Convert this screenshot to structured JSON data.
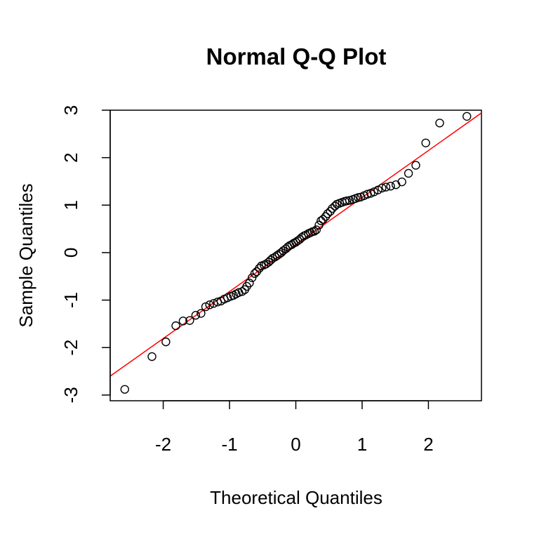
{
  "chart_data": {
    "type": "scatter",
    "title": "Normal Q-Q Plot",
    "xlabel": "Theoretical Quantiles",
    "ylabel": "Sample Quantiles",
    "xlim": [
      -2.8,
      2.8
    ],
    "ylim": [
      -3.12,
      3.0
    ],
    "xticks": [
      -2,
      -1,
      0,
      1,
      2
    ],
    "yticks": [
      -3,
      -2,
      -1,
      0,
      1,
      2,
      3
    ],
    "xtick_labels": [
      "-2",
      "-1",
      "0",
      "1",
      "2"
    ],
    "ytick_labels": [
      "-3",
      "-2",
      "-1",
      "0",
      "1",
      "2",
      "3"
    ],
    "grid": false,
    "reference_line": {
      "intercept": 0.17,
      "slope": 0.99,
      "color": "#ff0000"
    },
    "point_color": "#000000",
    "series": [
      {
        "x": [
          -2.58,
          -2.17,
          -1.96,
          -1.81,
          -1.7,
          -1.6,
          -1.51,
          -1.43,
          -1.36,
          -1.3,
          -1.24,
          -1.18,
          -1.13,
          -1.08,
          -1.03,
          -0.98,
          -0.94,
          -0.9,
          -0.86,
          -0.81,
          -0.77,
          -0.74,
          -0.7,
          -0.66,
          -0.62,
          -0.59,
          -0.55,
          -0.52,
          -0.48,
          -0.45,
          -0.41,
          -0.38,
          -0.35,
          -0.31,
          -0.28,
          -0.25,
          -0.22,
          -0.19,
          -0.15,
          -0.12,
          -0.09,
          -0.06,
          -0.03,
          0.0,
          0.03,
          0.06,
          0.09,
          0.12,
          0.15,
          0.19,
          0.22,
          0.25,
          0.28,
          0.31,
          0.35,
          0.38,
          0.41,
          0.45,
          0.48,
          0.52,
          0.55,
          0.59,
          0.62,
          0.66,
          0.7,
          0.74,
          0.77,
          0.81,
          0.86,
          0.9,
          0.94,
          0.98,
          1.03,
          1.08,
          1.13,
          1.18,
          1.24,
          1.3,
          1.36,
          1.43,
          1.51,
          1.6,
          1.7,
          1.81,
          1.96,
          2.17,
          2.58
        ],
        "y": [
          -2.88,
          -2.19,
          -1.88,
          -1.54,
          -1.44,
          -1.43,
          -1.32,
          -1.28,
          -1.14,
          -1.1,
          -1.07,
          -1.04,
          -1.02,
          -0.98,
          -0.95,
          -0.92,
          -0.9,
          -0.87,
          -0.84,
          -0.82,
          -0.78,
          -0.71,
          -0.64,
          -0.53,
          -0.44,
          -0.4,
          -0.33,
          -0.28,
          -0.26,
          -0.24,
          -0.2,
          -0.16,
          -0.12,
          -0.09,
          -0.06,
          -0.03,
          0.0,
          0.04,
          0.08,
          0.12,
          0.15,
          0.17,
          0.2,
          0.22,
          0.25,
          0.28,
          0.32,
          0.35,
          0.37,
          0.4,
          0.42,
          0.44,
          0.45,
          0.48,
          0.58,
          0.67,
          0.7,
          0.76,
          0.82,
          0.87,
          0.93,
          0.98,
          1.02,
          1.04,
          1.06,
          1.08,
          1.09,
          1.1,
          1.12,
          1.14,
          1.16,
          1.17,
          1.2,
          1.23,
          1.25,
          1.28,
          1.32,
          1.36,
          1.38,
          1.4,
          1.43,
          1.49,
          1.67,
          1.84,
          2.31,
          2.73,
          2.87
        ]
      }
    ]
  }
}
